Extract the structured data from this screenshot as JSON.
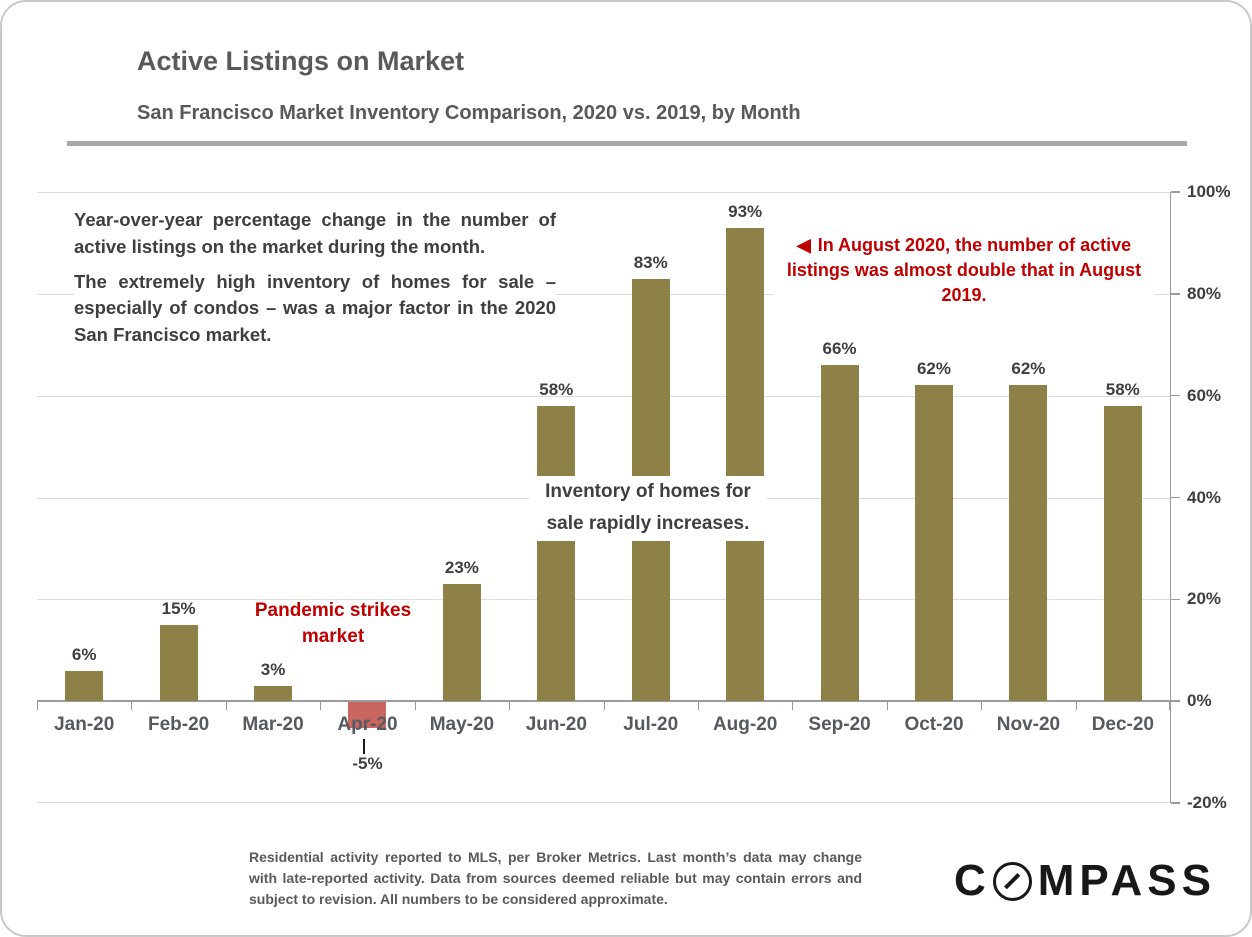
{
  "header": {
    "title": "Active Listings on Market",
    "subtitle": "San Francisco Market Inventory Comparison, 2020 vs. 2019, by Month"
  },
  "annotations": {
    "description": {
      "p1": "Year-over-year percentage change in the number of active listings on the market during the month.",
      "p2": "The extremely high inventory of homes for sale – especially of condos – was a major factor in the 2020 San Francisco market."
    },
    "august": {
      "arrow": "◀",
      "text": "In August 2020, the number of active listings was almost double that in August 2019."
    },
    "inventory": {
      "text": "Inventory of homes for sale rapidly increases."
    },
    "pandemic": {
      "text": "Pandemic strikes market"
    }
  },
  "chart_data": {
    "type": "bar",
    "title": "Active Listings on Market",
    "subtitle": "San Francisco Market Inventory Comparison, 2020 vs. 2019, by Month",
    "categories": [
      "Jan-20",
      "Feb-20",
      "Mar-20",
      "Apr-20",
      "May-20",
      "Jun-20",
      "Jul-20",
      "Aug-20",
      "Sep-20",
      "Oct-20",
      "Nov-20",
      "Dec-20"
    ],
    "values": [
      6,
      15,
      3,
      -5,
      23,
      58,
      83,
      93,
      66,
      62,
      62,
      58
    ],
    "data_labels": [
      "6%",
      "15%",
      "3%",
      "-5%",
      "23%",
      "58%",
      "83%",
      "93%",
      "66%",
      "62%",
      "62%",
      "58%"
    ],
    "xlabel": "",
    "ylabel": "",
    "ylim": [
      -20,
      100
    ],
    "yticks": [
      {
        "value": 100,
        "label": "100%"
      },
      {
        "value": 80,
        "label": "80%"
      },
      {
        "value": 60,
        "label": "60%"
      },
      {
        "value": 40,
        "label": "40%"
      },
      {
        "value": 20,
        "label": "20%"
      },
      {
        "value": 0,
        "label": "0%"
      },
      {
        "value": -20,
        "label": "-20%"
      }
    ],
    "grid": true,
    "legend": false,
    "axis_side": "right",
    "bar_color": "#8E8147",
    "negative_bar_color": "#C8665F"
  },
  "colors": {
    "accent_red": "#C00000",
    "bar_olive": "#8E8147",
    "bar_salmon": "#C8665F",
    "text_dark": "#3F3F3F",
    "text_gray": "#595959"
  },
  "footer": {
    "disclaimer": "Residential activity reported to MLS, per Broker Metrics. Last month’s data may change with late-reported activity. Data from sources deemed reliable but may contain errors and subject to revision. All numbers to be considered approximate.",
    "logo_prefix": "C",
    "logo_suffix": "MPASS"
  }
}
